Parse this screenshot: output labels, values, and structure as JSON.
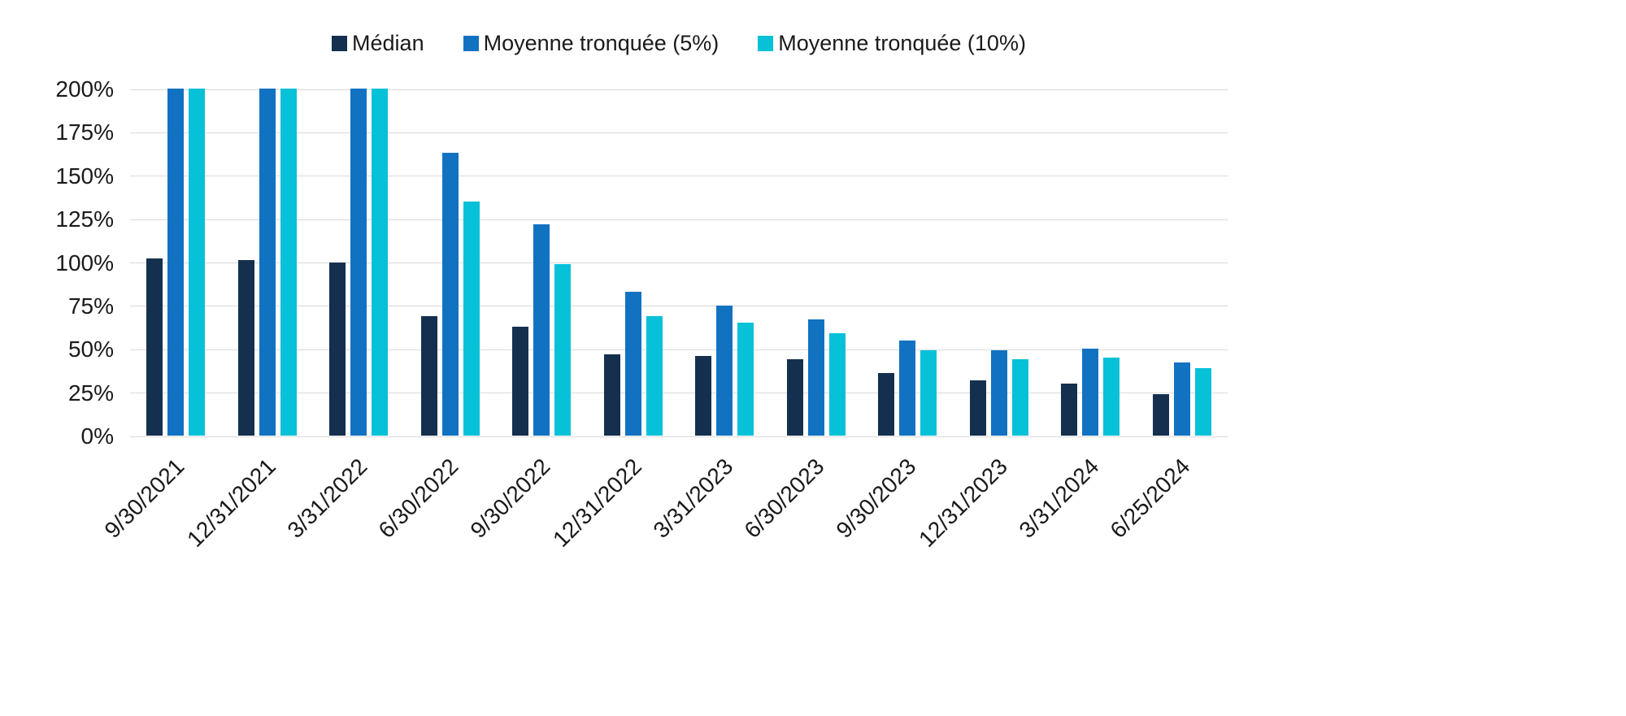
{
  "chart_data": {
    "type": "bar",
    "title": "",
    "xlabel": "",
    "ylabel": "",
    "ylim": [
      0,
      200
    ],
    "grid": true,
    "legend_position": "top",
    "yticks": [
      "0%",
      "25%",
      "50%",
      "75%",
      "100%",
      "125%",
      "150%",
      "175%",
      "200%"
    ],
    "ytick_values": [
      0,
      25,
      50,
      75,
      100,
      125,
      150,
      175,
      200
    ],
    "categories": [
      "9/30/2021",
      "12/31/2021",
      "3/31/2022",
      "6/30/2022",
      "9/30/2022",
      "12/31/2022",
      "3/31/2023",
      "6/30/2023",
      "9/30/2023",
      "12/31/2023",
      "3/31/2024",
      "6/25/2024"
    ],
    "series": [
      {
        "name": "Médian",
        "key": "median",
        "color": "#14304e",
        "values": [
          102,
          101,
          100,
          69,
          63,
          47,
          46,
          44,
          36,
          32,
          30,
          24
        ]
      },
      {
        "name": "Moyenne tronquée (5%)",
        "key": "mean-trimmed-5",
        "color": "#1272c2",
        "values": [
          200,
          200,
          200,
          163,
          122,
          83,
          75,
          67,
          55,
          49,
          50,
          42
        ]
      },
      {
        "name": "Moyenne tronquée (10%)",
        "key": "mean-trimmed-10",
        "color": "#06c1d8",
        "values": [
          200,
          200,
          200,
          135,
          99,
          69,
          65,
          59,
          49,
          44,
          45,
          39
        ]
      }
    ],
    "colors": {
      "grid": "#d9d9d9",
      "text": "#1a1a1a",
      "background": "#ffffff"
    }
  }
}
